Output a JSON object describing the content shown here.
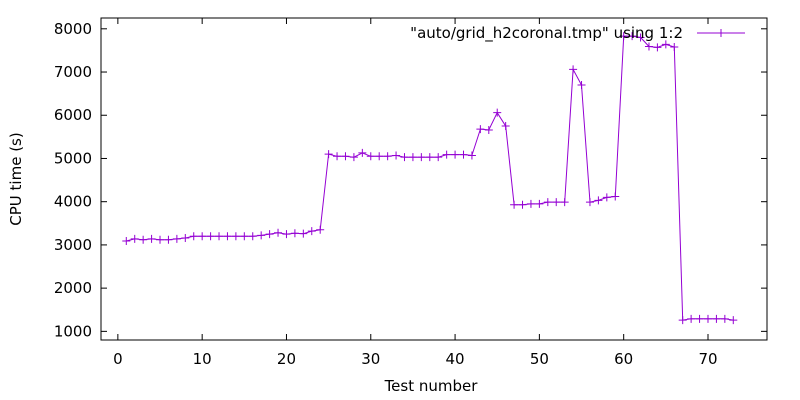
{
  "chart_data": {
    "type": "line",
    "title": "",
    "xlabel": "Test number",
    "ylabel": "CPU time (s)",
    "xlim": [
      -2,
      77
    ],
    "ylim": [
      800,
      8250
    ],
    "xticks": [
      0,
      10,
      20,
      30,
      40,
      50,
      60,
      70
    ],
    "yticks": [
      1000,
      2000,
      3000,
      4000,
      5000,
      6000,
      7000,
      8000
    ],
    "grid": false,
    "legend_position": "top-right",
    "series": [
      {
        "name": "\"auto/grid_h2coronal.tmp\" using 1:2",
        "color": "#9400d3",
        "marker": "plus",
        "x": [
          1,
          2,
          3,
          4,
          5,
          6,
          7,
          8,
          9,
          10,
          11,
          12,
          13,
          14,
          15,
          16,
          17,
          18,
          19,
          20,
          21,
          22,
          23,
          24,
          25,
          26,
          27,
          28,
          29,
          30,
          31,
          32,
          33,
          34,
          35,
          36,
          37,
          38,
          39,
          40,
          41,
          42,
          43,
          44,
          45,
          46,
          47,
          48,
          49,
          50,
          51,
          52,
          53,
          54,
          55,
          56,
          57,
          58,
          59,
          60,
          61,
          62,
          63,
          64,
          65,
          66,
          67,
          68,
          69,
          70,
          71,
          72,
          73
        ],
        "y": [
          3090,
          3140,
          3120,
          3140,
          3120,
          3120,
          3140,
          3160,
          3200,
          3200,
          3200,
          3200,
          3200,
          3200,
          3200,
          3200,
          3220,
          3250,
          3280,
          3250,
          3270,
          3260,
          3320,
          3350,
          5100,
          5050,
          5050,
          5030,
          5130,
          5050,
          5050,
          5050,
          5070,
          5030,
          5030,
          5030,
          5030,
          5030,
          5090,
          5090,
          5090,
          5070,
          5680,
          5660,
          6060,
          5750,
          3930,
          3930,
          3950,
          3950,
          3990,
          3990,
          3990,
          7060,
          6700,
          3990,
          4030,
          4100,
          4120,
          7830,
          7830,
          7800,
          7590,
          7570,
          7640,
          7580,
          1260,
          1290,
          1290,
          1290,
          1290,
          1290,
          1260
        ]
      }
    ]
  }
}
